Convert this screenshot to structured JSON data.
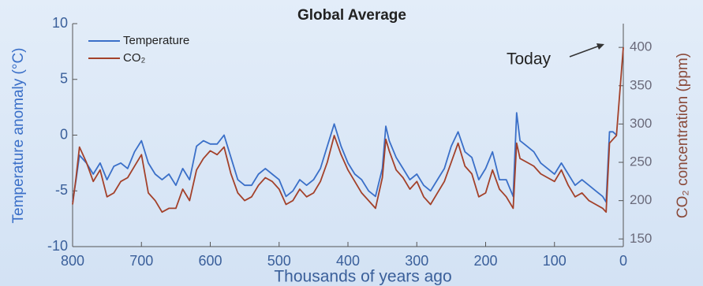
{
  "chart_data": {
    "type": "line",
    "title": "Global Average",
    "xlabel": "Thousands of years ago",
    "ylabel": "Temperature anomaly (°C)",
    "y2label": "CO₂ concentration (ppm)",
    "annotation": "Today",
    "x": [
      800,
      795,
      790,
      780,
      770,
      760,
      750,
      740,
      730,
      720,
      710,
      700,
      690,
      680,
      670,
      660,
      650,
      640,
      630,
      620,
      610,
      600,
      590,
      580,
      570,
      560,
      550,
      540,
      530,
      520,
      510,
      500,
      490,
      480,
      470,
      460,
      450,
      440,
      430,
      420,
      410,
      400,
      390,
      380,
      370,
      360,
      350,
      345,
      340,
      330,
      320,
      310,
      300,
      290,
      280,
      270,
      260,
      250,
      240,
      230,
      220,
      210,
      200,
      190,
      180,
      170,
      160,
      155,
      150,
      140,
      130,
      120,
      110,
      100,
      90,
      80,
      70,
      60,
      50,
      40,
      30,
      25,
      20,
      15,
      10,
      0
    ],
    "series": [
      {
        "name": "Temperature",
        "color": "#3a6fc8",
        "values": [
          -6,
          -4,
          -1.8,
          -2.5,
          -3.5,
          -2.5,
          -4,
          -2.8,
          -2.5,
          -3,
          -1.5,
          -0.5,
          -2.5,
          -3.5,
          -4,
          -3.5,
          -4.5,
          -3,
          -4,
          -1,
          -0.5,
          -0.8,
          -0.8,
          0,
          -2,
          -4,
          -4.5,
          -4.5,
          -3.5,
          -3,
          -3.5,
          -4,
          -5.5,
          -5,
          -4,
          -4.5,
          -4,
          -3,
          -1,
          1,
          -1,
          -2.5,
          -3.5,
          -4,
          -5,
          -5.5,
          -3,
          0.8,
          -0.5,
          -2,
          -3,
          -4,
          -3.5,
          -4.5,
          -5,
          -4,
          -3,
          -1,
          0.3,
          -1.5,
          -2,
          -4,
          -3,
          -1.5,
          -4,
          -4,
          -5.5,
          2,
          -0.5,
          -1,
          -1.5,
          -2.5,
          -3,
          -3.5,
          -2.5,
          -3.5,
          -4.5,
          -4,
          -4.5,
          -5,
          -5.5,
          -6,
          0.3,
          0.3,
          0,
          null
        ]
      },
      {
        "name": "CO₂",
        "color": "#a3412a",
        "axis": "y2",
        "values": [
          195,
          230,
          270,
          250,
          225,
          240,
          205,
          210,
          225,
          230,
          245,
          260,
          210,
          200,
          185,
          190,
          190,
          215,
          200,
          240,
          255,
          265,
          260,
          270,
          235,
          210,
          200,
          205,
          220,
          230,
          225,
          215,
          195,
          200,
          215,
          205,
          210,
          225,
          250,
          285,
          260,
          240,
          225,
          210,
          200,
          190,
          230,
          280,
          265,
          240,
          230,
          215,
          225,
          205,
          195,
          210,
          225,
          250,
          275,
          245,
          235,
          205,
          210,
          240,
          215,
          205,
          190,
          275,
          255,
          250,
          245,
          235,
          230,
          225,
          240,
          220,
          205,
          210,
          200,
          195,
          190,
          185,
          275,
          280,
          285,
          400
        ]
      }
    ],
    "xlim": [
      800,
      0
    ],
    "xticks": [
      800,
      700,
      600,
      500,
      400,
      300,
      200,
      100,
      0
    ],
    "ylim": [
      -10,
      10
    ],
    "yticks": [
      -10,
      -5,
      0,
      5,
      10
    ],
    "y2lim": [
      140,
      431
    ],
    "y2ticks": [
      150,
      200,
      250,
      300,
      350,
      400
    ],
    "grid": false
  }
}
